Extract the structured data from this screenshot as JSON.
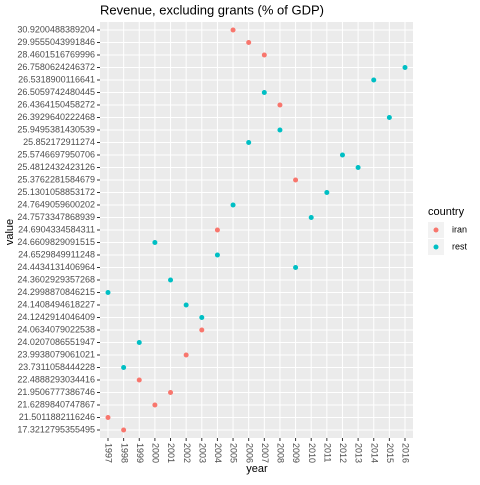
{
  "chart_data": {
    "type": "scatter",
    "title": "Revenue, excluding grants (% of GDP)",
    "x_label": "year",
    "y_label": "value",
    "legend_title": "country",
    "legend_position": "right",
    "grid": true,
    "xticks": [
      1997,
      1998,
      1999,
      2000,
      2001,
      2002,
      2003,
      2004,
      2005,
      2006,
      2007,
      2008,
      2009,
      2010,
      2011,
      2012,
      2013,
      2014,
      2015,
      2016
    ],
    "ycategories": [
      17.3212795355495,
      21.5011882116246,
      21.6289840747867,
      21.9506777386746,
      22.4888293034416,
      23.7311058444228,
      23.9938079061021,
      24.0207086551947,
      24.0634079022538,
      24.1242914046409,
      24.1408494618227,
      24.2998870846215,
      24.3602929357268,
      24.4434131406964,
      24.6529849911248,
      24.6609829091515,
      24.6904334584311,
      24.7573347868939,
      24.7649059600202,
      25.1301058853172,
      25.3762281584679,
      25.4812432423126,
      25.5746697950706,
      25.852172911274,
      25.9495381430539,
      26.3929640222468,
      26.4364150458272,
      26.5059742480445,
      26.5318900116641,
      26.7580624246372,
      28.4601516769996,
      29.9555043991846,
      30.9200488389204
    ],
    "series": [
      {
        "name": "iran",
        "color": "#F8766D",
        "x": [
          1997,
          1998,
          1999,
          2000,
          2001,
          2002,
          2003,
          2004,
          2005,
          2006,
          2007,
          2008,
          2009
        ],
        "values": [
          21.5011882116246,
          17.3212795355495,
          22.4888293034416,
          21.6289840747867,
          21.9506777386746,
          23.9938079061021,
          24.0634079022538,
          24.6904334584311,
          30.9200488389204,
          29.9555043991846,
          28.4601516769996,
          26.4364150458272,
          25.3762281584679
        ]
      },
      {
        "name": "rest",
        "color": "#00BFC4",
        "x": [
          1997,
          1998,
          1999,
          2000,
          2001,
          2002,
          2003,
          2004,
          2005,
          2006,
          2007,
          2008,
          2009,
          2010,
          2011,
          2012,
          2013,
          2014,
          2015,
          2016
        ],
        "values": [
          24.2998870846215,
          23.7311058444228,
          24.0207086551947,
          24.6609829091515,
          24.3602929357268,
          24.1408494618227,
          24.1242914046409,
          24.6529849911248,
          24.7649059600202,
          25.852172911274,
          26.5059742480445,
          25.9495381430539,
          24.4434131406964,
          24.7573347868939,
          25.1301058853172,
          25.5746697950706,
          25.4812432423126,
          26.5318900116641,
          26.3929640222468,
          26.7580624246372
        ]
      }
    ]
  }
}
